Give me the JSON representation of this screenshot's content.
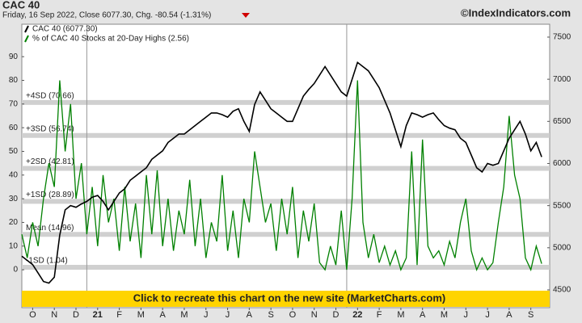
{
  "chart_data": {
    "type": "line",
    "title": "CAC 40",
    "subtitle": "Friday, 16 Sep 2022, Close 6077.30, Chg. -80.54 (-1.31%)",
    "source": "©IndexIndicators.com",
    "banner": "Click to recreate this chart on the new site (MarketCharts.com)",
    "x": [
      0,
      0.25,
      0.5,
      0.75,
      1,
      1.25,
      1.5,
      1.75,
      2,
      2.25,
      2.5,
      2.75,
      3,
      3.25,
      3.5,
      3.75,
      4,
      4.25,
      4.5,
      4.75,
      5,
      5.25,
      5.5,
      5.75,
      6,
      6.25,
      6.5,
      6.75,
      7,
      7.25,
      7.5,
      7.75,
      8,
      8.25,
      8.5,
      8.75,
      9,
      9.25,
      9.5,
      9.75,
      10,
      10.25,
      10.5,
      10.75,
      11,
      11.25,
      11.5,
      11.75,
      12,
      12.25,
      12.5,
      12.75,
      13,
      13.25,
      13.5,
      13.75,
      14,
      14.25,
      14.5,
      14.75,
      15,
      15.25,
      15.5,
      15.75,
      16,
      16.25,
      16.5,
      16.75,
      17,
      17.25,
      17.5,
      17.75,
      18,
      18.25,
      18.5,
      18.75,
      19,
      19.25,
      19.5,
      19.75,
      20,
      20.25,
      20.5,
      20.75,
      21,
      21.25,
      21.5,
      21.75,
      22,
      22.25,
      22.5,
      22.75,
      23,
      23.25,
      23.5,
      23.75,
      24
    ],
    "xlim": [
      0,
      24.37
    ],
    "xticks": [
      {
        "value": 0.5,
        "label": "O"
      },
      {
        "value": 1.5,
        "label": "N"
      },
      {
        "value": 2.5,
        "label": "D"
      },
      {
        "value": 3.5,
        "label": "21"
      },
      {
        "value": 4.5,
        "label": "F"
      },
      {
        "value": 5.5,
        "label": "M"
      },
      {
        "value": 6.5,
        "label": "A"
      },
      {
        "value": 7.5,
        "label": "M"
      },
      {
        "value": 8.5,
        "label": "J"
      },
      {
        "value": 9.5,
        "label": "J"
      },
      {
        "value": 10.5,
        "label": "A"
      },
      {
        "value": 11.5,
        "label": "S"
      },
      {
        "value": 12.5,
        "label": "O"
      },
      {
        "value": 13.5,
        "label": "N"
      },
      {
        "value": 14.5,
        "label": "D"
      },
      {
        "value": 15.5,
        "label": "22"
      },
      {
        "value": 16.5,
        "label": "F"
      },
      {
        "value": 17.5,
        "label": "M"
      },
      {
        "value": 18.5,
        "label": "A"
      },
      {
        "value": 19.5,
        "label": "M"
      },
      {
        "value": 20.5,
        "label": "J"
      },
      {
        "value": 21.5,
        "label": "J"
      },
      {
        "value": 22.5,
        "label": "A"
      },
      {
        "value": 23.5,
        "label": "S"
      }
    ],
    "ylim": [
      -16,
      103.7
    ],
    "yticks": [
      0,
      10,
      20,
      30,
      40,
      50,
      60,
      70,
      80,
      90
    ],
    "y2lim": [
      4289,
      7653
    ],
    "y2ticks": [
      4500,
      5000,
      5500,
      6000,
      6500,
      7000,
      7500
    ],
    "bands": [
      {
        "label": "+4SD (70.66)",
        "value": 70.66
      },
      {
        "label": "+3SD (56.74)",
        "value": 56.74
      },
      {
        "label": "+2SD (42.81)",
        "value": 42.81
      },
      {
        "label": "+1SD (28.89)",
        "value": 28.89
      },
      {
        "label": "Mean (14.96)",
        "value": 14.96
      },
      {
        "label": "-1SD (1.04)",
        "value": 1.04
      }
    ],
    "series": [
      {
        "name": "CAC 40 (6077.30)",
        "color": "#000000",
        "axis": "y2",
        "values": [
          4900,
          4850,
          4800,
          4700,
          4600,
          4580,
          4650,
          5150,
          5450,
          5500,
          5480,
          5520,
          5550,
          5600,
          5620,
          5550,
          5450,
          5550,
          5650,
          5700,
          5800,
          5850,
          5900,
          5950,
          6050,
          6100,
          6150,
          6250,
          6300,
          6350,
          6350,
          6400,
          6450,
          6500,
          6550,
          6600,
          6600,
          6580,
          6550,
          6620,
          6650,
          6500,
          6380,
          6700,
          6850,
          6750,
          6650,
          6600,
          6550,
          6500,
          6500,
          6650,
          6800,
          6880,
          6950,
          7050,
          7150,
          7050,
          6950,
          6850,
          6800,
          7000,
          7200,
          7150,
          7100,
          7000,
          6900,
          6750,
          6600,
          6400,
          6200,
          6450,
          6600,
          6580,
          6550,
          6580,
          6600,
          6520,
          6450,
          6420,
          6400,
          6300,
          6250,
          6100,
          5950,
          5900,
          6000,
          5980,
          6000,
          6150,
          6300,
          6400,
          6500,
          6350,
          6150,
          6250,
          6077.3
        ]
      },
      {
        "name": "% of CAC 40 Stocks at 20-Day Highs (2.56)",
        "color": "#008000",
        "values": [
          15,
          5,
          20,
          10,
          30,
          45,
          35,
          80,
          50,
          70,
          30,
          45,
          15,
          35,
          10,
          40,
          20,
          30,
          8,
          35,
          12,
          28,
          5,
          40,
          15,
          42,
          10,
          30,
          8,
          25,
          15,
          38,
          10,
          30,
          5,
          20,
          12,
          40,
          8,
          25,
          5,
          30,
          20,
          50,
          35,
          20,
          28,
          8,
          30,
          15,
          35,
          5,
          25,
          12,
          28,
          3,
          0,
          10,
          2,
          25,
          0,
          30,
          80,
          20,
          5,
          15,
          3,
          10,
          2,
          8,
          0,
          5,
          50,
          2,
          55,
          10,
          5,
          8,
          2,
          12,
          5,
          20,
          30,
          8,
          0,
          5,
          0,
          3,
          20,
          35,
          65,
          40,
          30,
          5,
          0,
          10,
          2.56
        ]
      }
    ]
  }
}
